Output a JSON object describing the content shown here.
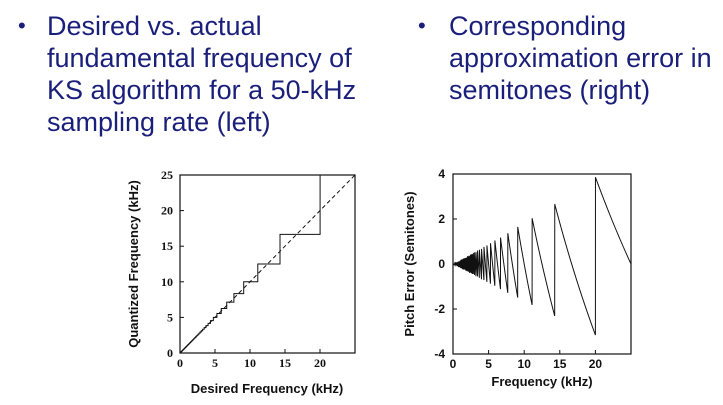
{
  "bullets": {
    "left": {
      "marker": "•",
      "text": "Desired vs. actual\nfundamental frequency of\nKS algorithm for a 50-kHz\nsampling rate (left)"
    },
    "right": {
      "marker": "•",
      "text": "Corresponding\napproximation error in\nsemitones (right)"
    }
  },
  "colors": {
    "bullet_text": "#1a1f7a",
    "ink": "#111111"
  },
  "chart_data": [
    {
      "type": "line",
      "xlabel": "Desired Frequency (kHz)",
      "ylabel": "Quantized Frequency (kHz)",
      "xlim": [
        0,
        25
      ],
      "ylim": [
        0,
        25
      ],
      "xticks": [
        0,
        5,
        10,
        15,
        20
      ],
      "yticks": [
        0,
        5,
        10,
        15,
        20,
        25
      ],
      "grid": false,
      "sampling_rate_khz": 50,
      "series": [
        {
          "style": "dashed",
          "x": [
            0,
            25
          ],
          "y": [
            0,
            25
          ]
        },
        {
          "style": "solid-step",
          "rule": "f_q = 50 / round(50 / f)"
        }
      ]
    },
    {
      "type": "line",
      "xlabel": "Frequency (kHz)",
      "ylabel": "Pitch Error (Semitones)",
      "xlim": [
        0,
        25
      ],
      "ylim": [
        -4,
        4
      ],
      "xticks": [
        0,
        5,
        10,
        15,
        20
      ],
      "yticks": [
        -4,
        -2,
        0,
        2,
        4
      ],
      "grid": false,
      "series": [
        {
          "style": "solid",
          "rule": "12 * log2((50 / round(50 / f)) / f)"
        }
      ]
    }
  ]
}
